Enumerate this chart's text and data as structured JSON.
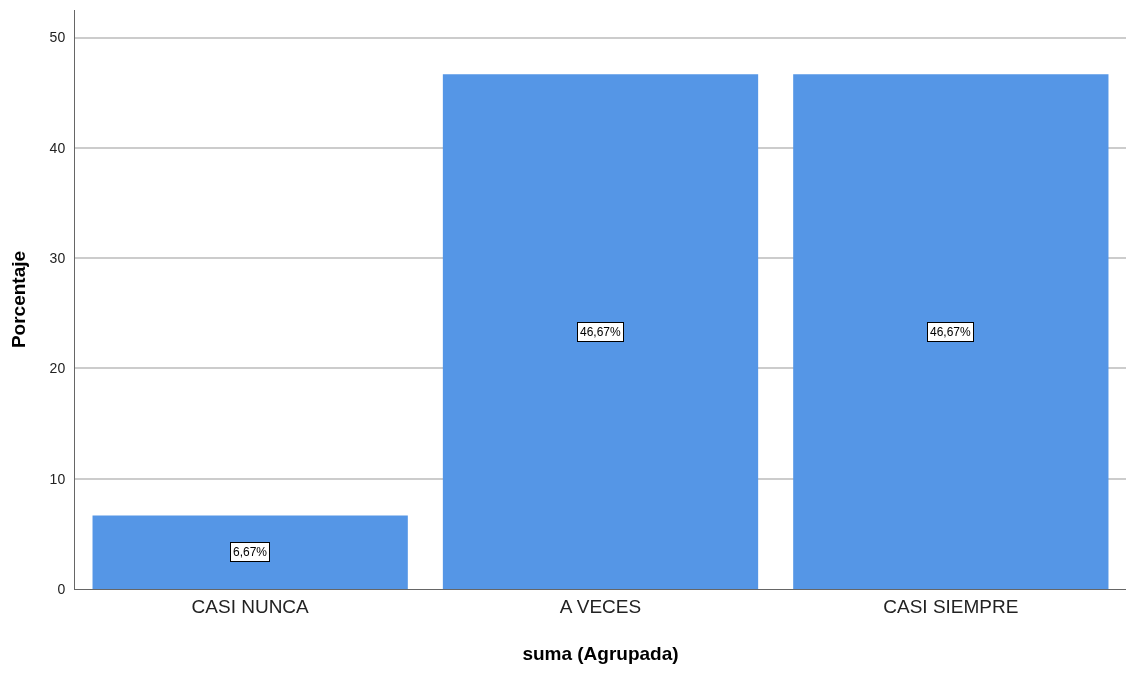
{
  "chart_data": {
    "type": "bar",
    "xlabel": "suma (Agrupada)",
    "ylabel": "Porcentaje",
    "categories": [
      "CASI NUNCA",
      "A VECES",
      "CASI SIEMPRE"
    ],
    "values": [
      6.67,
      46.67,
      46.67
    ],
    "value_labels": [
      "6,67%",
      "46,67%",
      "46,67%"
    ],
    "color": "#5596e6",
    "ylim": [
      0,
      52.5
    ],
    "yticks": [
      0,
      10,
      20,
      30,
      40,
      50
    ],
    "grid": "y"
  }
}
